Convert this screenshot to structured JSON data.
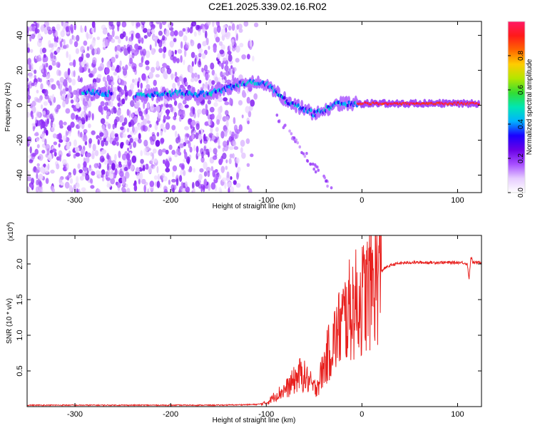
{
  "figure_title": "C2E1.2025.339.02.16.R02",
  "chart_data": [
    {
      "type": "heatmap",
      "xlabel": "Height of straight line (km)",
      "ylabel": "Frequency (Hz)",
      "xlim": [
        -350,
        125
      ],
      "ylim": [
        -50,
        48
      ],
      "xticks": [
        -300,
        -200,
        -100,
        0,
        100
      ],
      "yticks": [
        -40,
        -20,
        0,
        20,
        40
      ],
      "xticklabels": [
        "-300",
        "-200",
        "-100",
        "0",
        "100"
      ],
      "yticklabels": [
        "-40",
        "-20",
        "0",
        "20",
        "40"
      ],
      "colorbar": {
        "label": "Normalized spectral amplitude",
        "range": [
          0,
          1
        ],
        "ticks": [
          0.0,
          0.2,
          0.4,
          0.6,
          0.8
        ],
        "ticklabels": [
          "0.0",
          "0.2",
          "0.4",
          "0.6",
          "0.8"
        ],
        "colormap": [
          "#ffffff",
          "#e6ccff",
          "#a64dff",
          "#6a00e6",
          "#1a00ff",
          "#00b3ff",
          "#00e6b3",
          "#33dd33",
          "#b3e600",
          "#ffcc00",
          "#ff6600",
          "#ff1a1a",
          "#ff1a66"
        ]
      },
      "ridge": {
        "x": [
          -290,
          -270,
          -250,
          -230,
          -210,
          -190,
          -170,
          -150,
          -130,
          -115,
          -100,
          -90,
          -80,
          -70,
          -60,
          -50,
          -40,
          -30,
          -20,
          -10,
          0,
          20,
          50,
          80,
          110,
          125
        ],
        "y": [
          8,
          7,
          6,
          6,
          6,
          7,
          6,
          8,
          12,
          13,
          12,
          8,
          3,
          0,
          -2,
          -5,
          -3,
          0,
          1,
          1,
          1,
          1,
          1,
          1,
          1,
          1
        ]
      },
      "descending_branch": {
        "x": [
          -90,
          -80,
          -70,
          -60,
          -50,
          -40,
          -30
        ],
        "y": [
          -6,
          -12,
          -20,
          -28,
          -35,
          -42,
          -48
        ]
      }
    },
    {
      "type": "line",
      "xlabel": "Height of straight line (km)",
      "ylabel": "SNR (10 * v/v)",
      "y_multiplier": "(x10",
      "y_multiplier_exp": "4",
      "xlim": [
        -350,
        125
      ],
      "ylim": [
        0,
        2.4
      ],
      "xticks": [
        -300,
        -200,
        -100,
        0,
        100
      ],
      "yticks": [
        0.5,
        1.0,
        1.5,
        2.0
      ],
      "xticklabels": [
        "-300",
        "-200",
        "-100",
        "0",
        "100"
      ],
      "yticklabels": [
        "0.5",
        "1.0",
        "1.5",
        "2.0"
      ],
      "color": "#e8201e",
      "series": [
        {
          "x": [
            -350,
            -300,
            -250,
            -200,
            -150,
            -110,
            -100,
            -95,
            -90,
            -85,
            -80,
            -75,
            -70,
            -65,
            -60,
            -55,
            -50,
            -45,
            -40,
            -35,
            -30,
            -25,
            -20,
            -15,
            -10,
            -5,
            0,
            5,
            10,
            15,
            20,
            25,
            30,
            35,
            40,
            50,
            60,
            70,
            80,
            90,
            100,
            105,
            108,
            110,
            112,
            114,
            116,
            120,
            125
          ],
          "y": [
            0.02,
            0.02,
            0.02,
            0.02,
            0.02,
            0.03,
            0.05,
            0.1,
            0.16,
            0.2,
            0.24,
            0.3,
            0.38,
            0.45,
            0.42,
            0.35,
            0.25,
            0.35,
            0.55,
            0.75,
            0.9,
            1.05,
            1.2,
            1.3,
            1.4,
            1.45,
            1.5,
            1.6,
            1.72,
            1.82,
            1.9,
            1.95,
            1.98,
            2.0,
            2.01,
            2.02,
            2.02,
            2.02,
            2.02,
            2.02,
            2.02,
            2.02,
            2.01,
            2.0,
            1.8,
            2.1,
            2.02,
            2.02,
            2.02
          ]
        }
      ]
    }
  ]
}
